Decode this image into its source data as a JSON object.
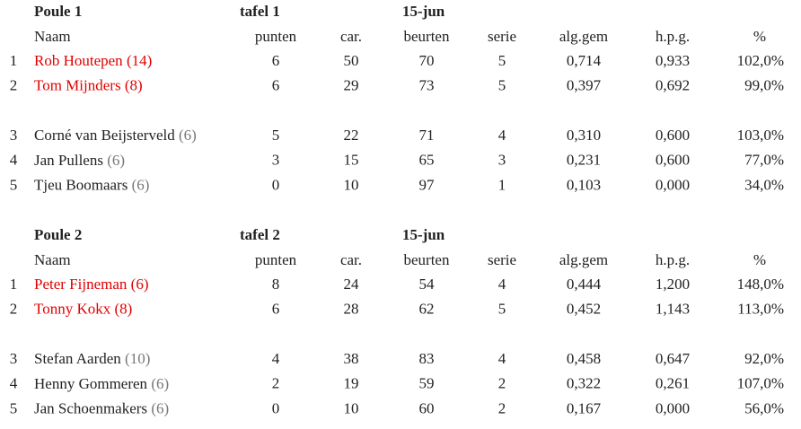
{
  "poules": [
    {
      "title": "Poule 1",
      "table": "tafel 1",
      "date": "15-jun",
      "headers": [
        "Naam",
        "punten",
        "car.",
        "beurten",
        "serie",
        "alg.gem",
        "h.p.g.",
        "%"
      ],
      "rows": [
        {
          "rank": "1",
          "name": "Rob Houtepen",
          "handicap": "(14)",
          "color": "#e00000",
          "cells": [
            "6",
            "50",
            "70",
            "5",
            "0,714",
            "0,933",
            "102,0%"
          ]
        },
        {
          "rank": "2",
          "name": "Tom Mijnders",
          "handicap": "(8)",
          "color": "#e00000",
          "cells": [
            "6",
            "29",
            "73",
            "5",
            "0,397",
            "0,692",
            "99,0%"
          ]
        },
        {
          "rank": "3",
          "name": "Corné van Beijsterveld",
          "handicap": "(6)",
          "color": "#222222",
          "cells": [
            "5",
            "22",
            "71",
            "4",
            "0,310",
            "0,600",
            "103,0%"
          ]
        },
        {
          "rank": "4",
          "name": "Jan Pullens",
          "handicap": "(6)",
          "color": "#222222",
          "cells": [
            "3",
            "15",
            "65",
            "3",
            "0,231",
            "0,600",
            "77,0%"
          ]
        },
        {
          "rank": "5",
          "name": "Tjeu Boomaars",
          "handicap": "(6)",
          "color": "#222222",
          "cells": [
            "0",
            "10",
            "97",
            "1",
            "0,103",
            "0,000",
            "34,0%"
          ]
        }
      ]
    },
    {
      "title": "Poule 2",
      "table": "tafel 2",
      "date": "15-jun",
      "headers": [
        "Naam",
        "punten",
        "car.",
        "beurten",
        "serie",
        "alg.gem",
        "h.p.g.",
        "%"
      ],
      "rows": [
        {
          "rank": "1",
          "name": "Peter Fijneman",
          "handicap": "(6)",
          "color": "#e00000",
          "cells": [
            "8",
            "24",
            "54",
            "4",
            "0,444",
            "1,200",
            "148,0%"
          ]
        },
        {
          "rank": "2",
          "name": "Tonny Kokx",
          "handicap": "(8)",
          "color": "#e00000",
          "cells": [
            "6",
            "28",
            "62",
            "5",
            "0,452",
            "1,143",
            "113,0%"
          ]
        },
        {
          "rank": "3",
          "name": "Stefan Aarden",
          "handicap": "(10)",
          "color": "#222222",
          "cells": [
            "4",
            "38",
            "83",
            "4",
            "0,458",
            "0,647",
            "92,0%"
          ]
        },
        {
          "rank": "4",
          "name": "Henny Gommeren",
          "handicap": "(6)",
          "color": "#222222",
          "cells": [
            "2",
            "19",
            "59",
            "2",
            "0,322",
            "0,261",
            "107,0%"
          ]
        },
        {
          "rank": "5",
          "name": "Jan Schoenmakers",
          "handicap": "(6)",
          "color": "#222222",
          "cells": [
            "0",
            "10",
            "60",
            "2",
            "0,167",
            "0,000",
            "56,0%"
          ]
        }
      ]
    }
  ]
}
